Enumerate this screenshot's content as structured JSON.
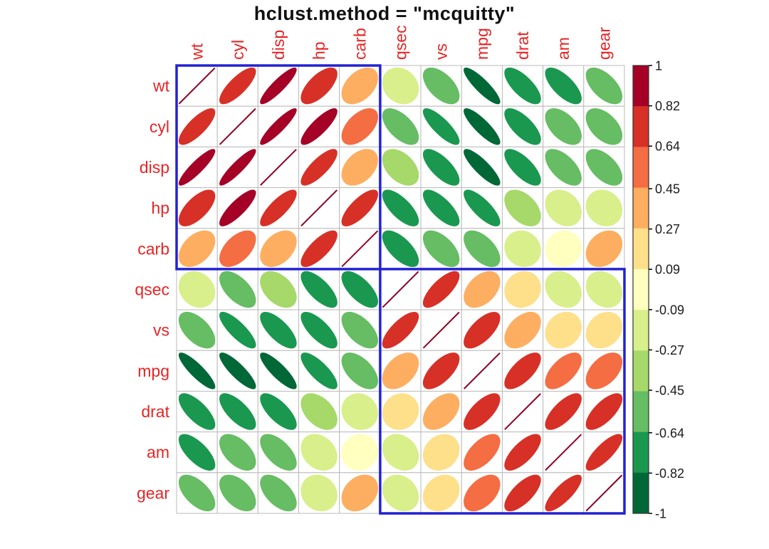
{
  "title": "hclust.method = \"mcquitty\"",
  "chart_data": {
    "type": "heatmap",
    "subtype": "correlation-ellipse-matrix",
    "title": "hclust.method = \"mcquitty\"",
    "variables": [
      "wt",
      "cyl",
      "disp",
      "hp",
      "carb",
      "qsec",
      "vs",
      "mpg",
      "drat",
      "am",
      "gear"
    ],
    "matrix": [
      [
        1.0,
        0.782,
        0.888,
        0.659,
        0.428,
        -0.175,
        -0.555,
        -0.868,
        -0.712,
        -0.692,
        -0.583
      ],
      [
        0.782,
        1.0,
        0.902,
        0.832,
        0.527,
        -0.591,
        -0.811,
        -0.852,
        -0.7,
        -0.523,
        -0.493
      ],
      [
        0.888,
        0.902,
        1.0,
        0.791,
        0.395,
        -0.434,
        -0.71,
        -0.848,
        -0.71,
        -0.591,
        -0.556
      ],
      [
        0.659,
        0.832,
        0.791,
        1.0,
        0.75,
        -0.708,
        -0.723,
        -0.776,
        -0.449,
        -0.243,
        -0.126
      ],
      [
        0.428,
        0.527,
        0.395,
        0.75,
        1.0,
        -0.656,
        -0.57,
        -0.551,
        -0.091,
        0.058,
        0.274
      ],
      [
        -0.175,
        -0.591,
        -0.434,
        -0.708,
        -0.656,
        1.0,
        0.745,
        0.419,
        0.091,
        -0.23,
        -0.213
      ],
      [
        -0.555,
        -0.811,
        -0.71,
        -0.723,
        -0.57,
        0.745,
        1.0,
        0.664,
        0.44,
        0.168,
        0.206
      ],
      [
        -0.868,
        -0.852,
        -0.848,
        -0.776,
        -0.551,
        0.419,
        0.664,
        1.0,
        0.681,
        0.6,
        0.48
      ],
      [
        -0.712,
        -0.7,
        -0.71,
        -0.449,
        -0.091,
        0.091,
        0.44,
        0.681,
        1.0,
        0.713,
        0.7
      ],
      [
        -0.692,
        -0.523,
        -0.591,
        -0.243,
        0.058,
        -0.23,
        0.168,
        0.6,
        0.713,
        1.0,
        0.794
      ],
      [
        -0.583,
        -0.493,
        -0.556,
        -0.126,
        0.274,
        -0.213,
        0.206,
        0.48,
        0.7,
        0.794,
        1.0
      ]
    ],
    "value_range": [
      -1,
      1
    ],
    "palette": [
      "#a50026",
      "#d73027",
      "#f46d43",
      "#fdae61",
      "#fee08b",
      "#ffffbf",
      "#d9ef8b",
      "#a6d96a",
      "#66bd63",
      "#1a9850",
      "#006837"
    ],
    "legend_ticks": [
      "1",
      "0.82",
      "0.64",
      "0.45",
      "0.27",
      "0.09",
      "-0.09",
      "-0.27",
      "-0.45",
      "-0.64",
      "-0.82",
      "-1"
    ],
    "legend_position": "right",
    "cluster_rects": [
      {
        "start": 0,
        "end": 4
      },
      {
        "start": 5,
        "end": 10
      }
    ],
    "colors": {
      "label": "#e62525",
      "cluster_rect": "#2222d4",
      "grid_line": "#bbbbbb",
      "diag_line": "#8e0023",
      "title": "#111111",
      "legend_text": "#1a1a1a",
      "legend_border": "#333333",
      "background": "#ffffff"
    },
    "grid": true
  }
}
